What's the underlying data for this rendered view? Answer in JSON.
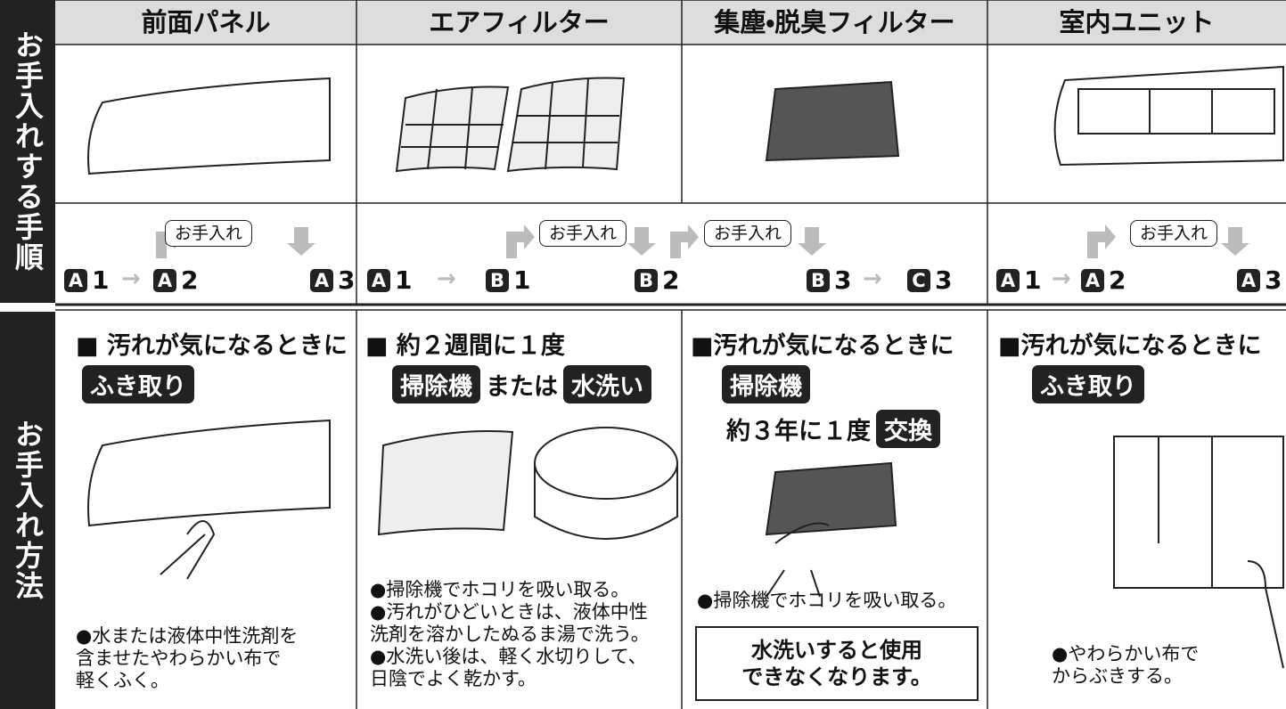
{
  "side_labels": [
    "お手入れする手順",
    "お手入れ方法"
  ],
  "columns": [
    {
      "title": "前面パネル",
      "method": {
        "heading": "■ 汚れが気になるときに",
        "lines": [
          [
            {
              "tag": "ふき取り"
            }
          ]
        ],
        "notes": [
          "●水または液体中性洗剤を\n含ませたやわらかい布で\n軽くふく。"
        ]
      }
    },
    {
      "title": "エアフィルター",
      "method": {
        "heading": "■ 約２週間に１度",
        "lines": [
          [
            {
              "tag": "掃除機"
            },
            {
              "text": "または"
            },
            {
              "tag": "水洗い"
            }
          ]
        ],
        "notes": [
          "●掃除機でホコリを吸い取る。",
          "●汚れがひどいときは、液体中性\n洗剤を溶かしたぬるま湯で洗う。",
          "●水洗い後は、軽く水切りして、\n日陰でよく乾かす。"
        ]
      }
    },
    {
      "title": "集塵・脱臭フィルター",
      "method": {
        "heading": "■汚れが気になるときに",
        "lines": [
          [
            {
              "tag": "掃除機"
            }
          ],
          [
            {
              "text": "約３年に１度"
            },
            {
              "tag": "交換"
            }
          ]
        ],
        "notes": [
          "●掃除機でホコリを吸い取る。"
        ],
        "warning": "水洗いすると使用\nできなくなります。"
      }
    },
    {
      "title": "室内ユニット",
      "method": {
        "heading": "■汚れが気になるときに",
        "lines": [
          [
            {
              "tag": "ふき取り"
            }
          ]
        ],
        "notes": [
          "●やわらかい布で\nからぶきする。"
        ]
      }
    }
  ],
  "procedures": [
    {
      "labels": [
        "お手入れ"
      ],
      "steps": [
        {
          "badge": "A",
          "num": "1"
        },
        {
          "badge": "A",
          "num": "2"
        },
        {
          "badge": "A",
          "num": "3"
        }
      ]
    },
    {
      "labels": [
        "お手入れ",
        "お手入れ"
      ],
      "steps": [
        {
          "badge": "A",
          "num": "1"
        },
        {
          "badge": "B",
          "num": "1"
        },
        {
          "badge": "B",
          "num": "2"
        },
        {
          "badge": "B",
          "num": "3"
        },
        {
          "badge": "C",
          "num": "3"
        }
      ]
    },
    {
      "labels": [
        "お手入れ"
      ],
      "steps": [
        {
          "badge": "A",
          "num": "1"
        },
        {
          "badge": "A",
          "num": "2"
        },
        {
          "badge": "A",
          "num": "3"
        }
      ]
    }
  ]
}
